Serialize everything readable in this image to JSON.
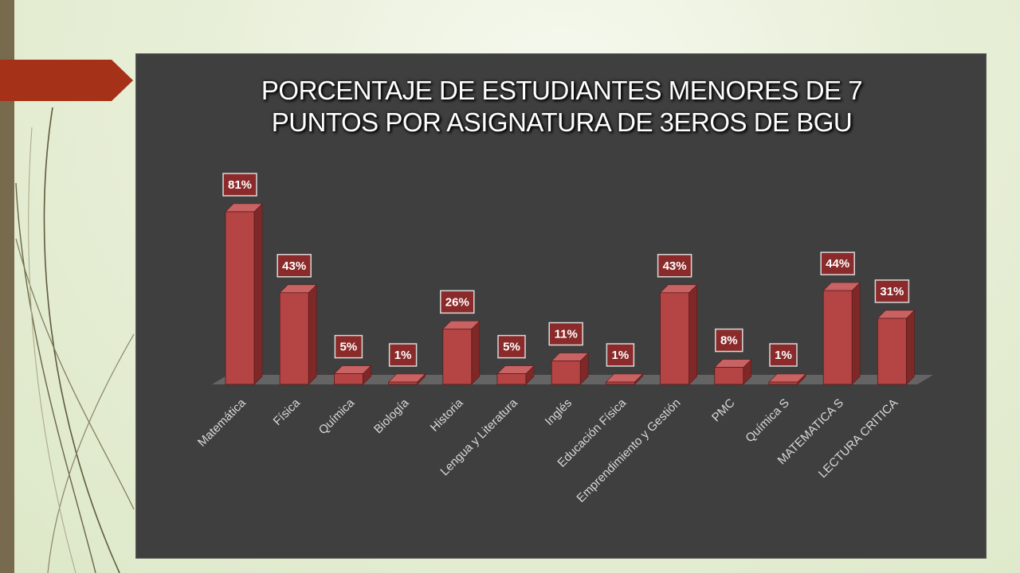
{
  "slide": {
    "accent_color": "#a53218",
    "left_bar_color": "#786b4d",
    "panel_color": "#3f3f3f"
  },
  "chart_data": {
    "type": "bar",
    "title_lines": [
      "PORCENTAJE DE ESTUDIANTES MENORES DE 7",
      "PUNTOS POR ASIGNATURA DE 3EROS DE BGU"
    ],
    "categories": [
      "Matemática",
      "Física",
      "Química",
      "Biología",
      "Historia",
      "Lengua y Literatura",
      "Inglés",
      "Educación Física",
      "Emprendimiento y Gestión",
      "PMC",
      "Química S",
      "MATEMATICA  S",
      "LECTURA CRITICA"
    ],
    "values": [
      81,
      43,
      5,
      1,
      26,
      5,
      11,
      1,
      43,
      8,
      1,
      44,
      31
    ],
    "value_labels": [
      "81%",
      "43%",
      "5%",
      "1%",
      "26%",
      "5%",
      "11%",
      "1%",
      "43%",
      "8%",
      "1%",
      "44%",
      "31%"
    ],
    "unit": "%",
    "ylim": [
      0,
      85
    ],
    "bar_color": "#b54444",
    "grid": false,
    "legend": "none",
    "style": "3d-column"
  }
}
